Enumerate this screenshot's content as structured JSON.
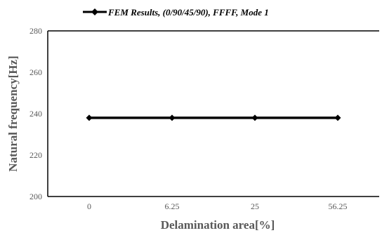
{
  "chart_data": {
    "type": "line",
    "categories": [
      "0",
      "6.25",
      "25",
      "56.25"
    ],
    "series": [
      {
        "name": "FEM Results, (0/90/45/90), FFFF, Mode 1",
        "values": [
          238,
          238,
          238,
          238
        ]
      }
    ],
    "xlabel": "Delamination area[%]",
    "ylabel": "Natural frequency[Hz]",
    "ylim": [
      200,
      280
    ],
    "yticks": [
      200,
      220,
      240,
      260,
      280
    ],
    "grid": false,
    "legend": "top-center",
    "colors": {
      "series": "#000000",
      "axis": "#000000",
      "text": "#595959"
    },
    "marker": "diamond"
  }
}
